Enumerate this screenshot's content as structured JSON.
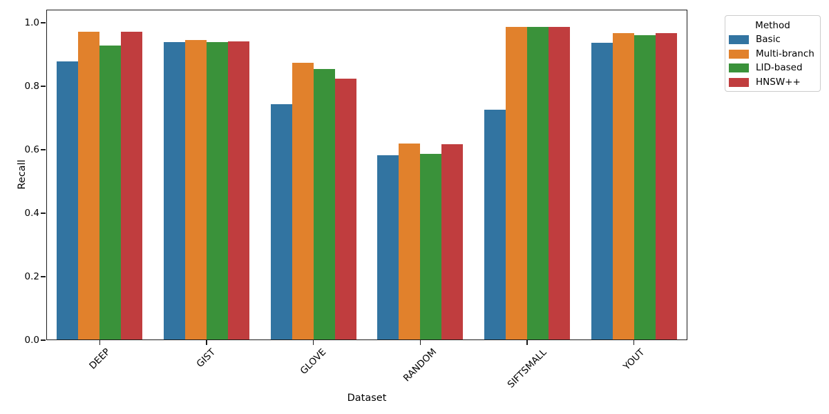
{
  "chart_data": {
    "type": "bar",
    "title": "",
    "xlabel": "Dataset",
    "ylabel": "Recall",
    "categories": [
      "DEEP",
      "GIST",
      "GLOVE",
      "RANDOM",
      "SIFTSMALL",
      "YOUT"
    ],
    "series": [
      {
        "name": "Basic",
        "color": "#3274a1",
        "values": [
          0.879,
          0.94,
          0.743,
          0.582,
          0.727,
          0.936
        ]
      },
      {
        "name": "Multi-branch",
        "color": "#e1812c",
        "values": [
          0.971,
          0.946,
          0.875,
          0.62,
          0.988,
          0.967
        ]
      },
      {
        "name": "LID-based",
        "color": "#3a923a",
        "values": [
          0.928,
          0.939,
          0.855,
          0.586,
          0.986,
          0.961
        ]
      },
      {
        "name": "HNSW++",
        "color": "#c03d3e",
        "values": [
          0.972,
          0.942,
          0.823,
          0.618,
          0.988,
          0.968
        ]
      }
    ],
    "ylim": [
      0.0,
      1.04
    ],
    "yticks": [
      "0.0",
      "0.2",
      "0.4",
      "0.6",
      "0.8",
      "1.0"
    ],
    "grid": false,
    "legend": {
      "title": "Method",
      "position": "upper-right-outside"
    },
    "layout": {
      "group_width_fraction": 0.8,
      "background": "#ffffff",
      "spine_color": "#1a1a1a"
    }
  }
}
